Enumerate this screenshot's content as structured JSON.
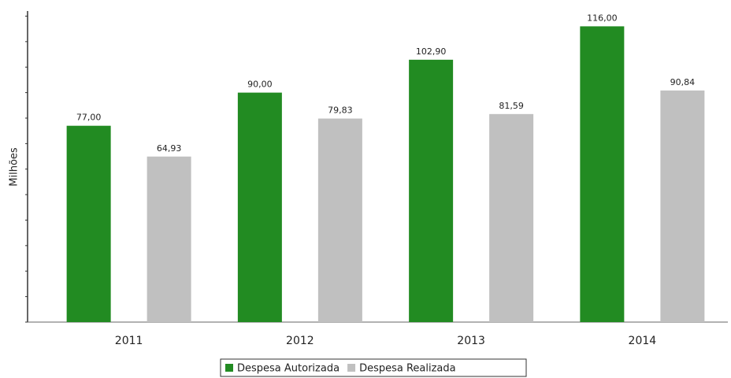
{
  "chart_data": {
    "type": "bar",
    "y_label": "Milhões",
    "categories": [
      "2011",
      "2012",
      "2013",
      "2014"
    ],
    "series": [
      {
        "name": "Despesa Autorizada",
        "color": "#228b22",
        "values": [
          77,
          90,
          102.9,
          116
        ],
        "value_labels": [
          "77,00",
          "90,00",
          "102,90",
          "116,00"
        ]
      },
      {
        "name": "Despesa Realizada",
        "color": "#c0c0c0",
        "values": [
          64.93,
          79.83,
          81.59,
          90.84
        ],
        "value_labels": [
          "64,93",
          "79,83",
          "81,59",
          "90,84"
        ]
      }
    ],
    "ylim": [
      0,
      122
    ],
    "yticks": [
      0,
      10,
      20,
      30,
      40,
      50,
      60,
      70,
      80,
      90,
      100,
      110,
      120
    ],
    "legend": "bottom"
  }
}
